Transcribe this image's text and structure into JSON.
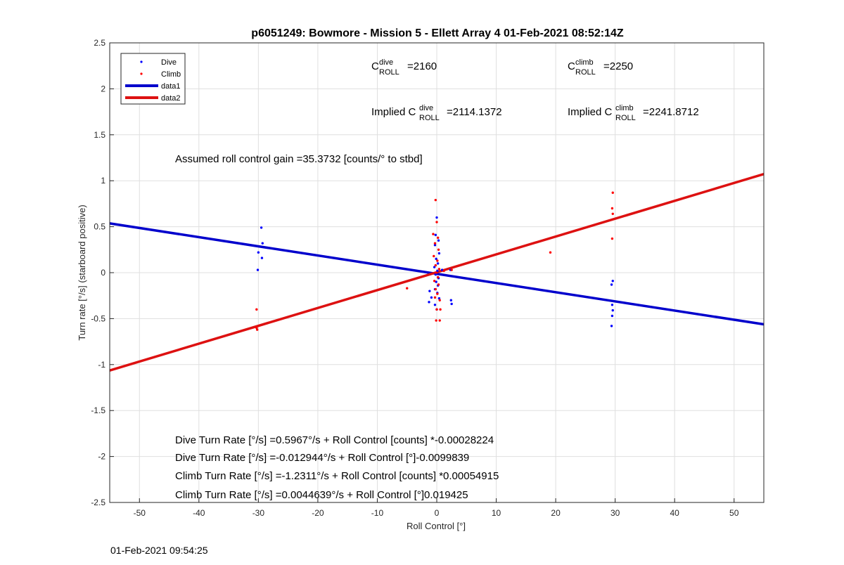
{
  "colors": {
    "dive": "#0000ff",
    "climb": "#ff0000",
    "data1": "#0000cc",
    "data2": "#dd1111"
  },
  "footer_timestamp": "01-Feb-2021 09:54:25",
  "annotations": {
    "c_dive": {
      "base": "C",
      "sup": "dive",
      "sub": "ROLL",
      "value": "=2160"
    },
    "c_climb": {
      "base": "C",
      "sup": "climb",
      "sub": "ROLL",
      "value": "=2250"
    },
    "implied_dive": {
      "prefix": "Implied C",
      "sup": "dive",
      "sub": "ROLL",
      "value": "=2114.1372"
    },
    "implied_climb": {
      "prefix": "Implied C",
      "sup": "climb",
      "sub": "ROLL",
      "value": "=2241.8712"
    },
    "gain": "Assumed roll control gain =35.3732 [counts/° to stbd]",
    "eq1": "Dive Turn Rate [°/s] =0.5967°/s + Roll Control [counts] *-0.00028224",
    "eq2": "Dive Turn Rate [°/s] =-0.012944°/s + Roll Control [°]-0.0099839",
    "eq3": "Climb Turn Rate [°/s] =-1.2311°/s + Roll Control [counts] *0.00054915",
    "eq4": "Climb Turn Rate [°/s] =0.0044639°/s + Roll Control [°]0.019425"
  },
  "chart_data": {
    "type": "scatter",
    "title": "p6051249: Bowmore - Mission 5 - Ellett Array 4 01-Feb-2021 08:52:14Z",
    "xlabel": "Roll Control [°]",
    "ylabel": "Turn rate [°/s] (starboard positive)",
    "xlim": [
      -55,
      55
    ],
    "ylim": [
      -2.5,
      2.5
    ],
    "xticks": [
      -50,
      -40,
      -30,
      -20,
      -10,
      0,
      10,
      20,
      30,
      40,
      50
    ],
    "yticks": [
      -2.5,
      -2,
      -1.5,
      -1,
      -0.5,
      0,
      0.5,
      1,
      1.5,
      2,
      2.5
    ],
    "grid": true,
    "legend_position": "top-left",
    "legend": [
      "Dive",
      "Climb",
      "data1",
      "data2"
    ],
    "series": [
      {
        "name": "Dive",
        "kind": "points",
        "color_key": "dive",
        "points": [
          [
            -29.5,
            0.49
          ],
          [
            -29.3,
            0.32
          ],
          [
            -30.0,
            0.22
          ],
          [
            -29.4,
            0.16
          ],
          [
            -30.1,
            0.03
          ],
          [
            0.0,
            0.6
          ],
          [
            -0.2,
            0.41
          ],
          [
            0.3,
            0.35
          ],
          [
            -0.3,
            0.3
          ],
          [
            0.4,
            0.21
          ],
          [
            -0.1,
            0.15
          ],
          [
            0.2,
            0.1
          ],
          [
            -0.4,
            0.06
          ],
          [
            0.1,
            0.02
          ],
          [
            -0.2,
            -0.02
          ],
          [
            0.3,
            -0.06
          ],
          [
            -0.1,
            -0.1
          ],
          [
            0.2,
            -0.14
          ],
          [
            -0.3,
            -0.18
          ],
          [
            0.1,
            -0.22
          ],
          [
            -1.2,
            -0.2
          ],
          [
            -0.9,
            -0.27
          ],
          [
            -1.3,
            -0.32
          ],
          [
            0.4,
            -0.28
          ],
          [
            -0.3,
            -0.35
          ],
          [
            0.0,
            -0.4
          ],
          [
            2.4,
            -0.3
          ],
          [
            2.5,
            -0.34
          ],
          [
            2.3,
            0.03
          ],
          [
            0.9,
            0.03
          ],
          [
            29.6,
            -0.09
          ],
          [
            29.4,
            -0.13
          ],
          [
            29.5,
            -0.35
          ],
          [
            29.6,
            -0.41
          ],
          [
            29.5,
            -0.47
          ],
          [
            29.4,
            -0.58
          ]
        ]
      },
      {
        "name": "Climb",
        "kind": "points",
        "color_key": "climb",
        "points": [
          [
            -30.3,
            -0.4
          ],
          [
            -30.3,
            -0.6
          ],
          [
            -30.2,
            -0.62
          ],
          [
            -5.0,
            -0.17
          ],
          [
            -0.2,
            0.79
          ],
          [
            0.0,
            0.55
          ],
          [
            -0.6,
            0.42
          ],
          [
            0.2,
            0.38
          ],
          [
            -0.3,
            0.32
          ],
          [
            0.3,
            0.25
          ],
          [
            -0.5,
            0.18
          ],
          [
            0.1,
            0.13
          ],
          [
            -0.2,
            0.08
          ],
          [
            0.4,
            0.04
          ],
          [
            -0.1,
            0.0
          ],
          [
            0.2,
            -0.05
          ],
          [
            -0.4,
            -0.09
          ],
          [
            0.3,
            -0.13
          ],
          [
            -0.2,
            -0.18
          ],
          [
            0.1,
            -0.23
          ],
          [
            -0.3,
            -0.27
          ],
          [
            0.5,
            -0.3
          ],
          [
            0.0,
            -0.4
          ],
          [
            0.6,
            -0.4
          ],
          [
            -0.1,
            -0.52
          ],
          [
            0.5,
            -0.52
          ],
          [
            2.5,
            0.03
          ],
          [
            1.2,
            0.02
          ],
          [
            19.1,
            0.22
          ],
          [
            29.6,
            0.87
          ],
          [
            29.5,
            0.7
          ],
          [
            29.6,
            0.64
          ],
          [
            29.5,
            0.37
          ]
        ]
      },
      {
        "name": "data1",
        "kind": "line",
        "color_key": "data1",
        "x": [
          -55,
          55
        ],
        "y": [
          0.536,
          -0.562
        ]
      },
      {
        "name": "data2",
        "kind": "line",
        "color_key": "data2",
        "x": [
          -55,
          55
        ],
        "y": [
          -1.064,
          1.073
        ]
      }
    ]
  }
}
